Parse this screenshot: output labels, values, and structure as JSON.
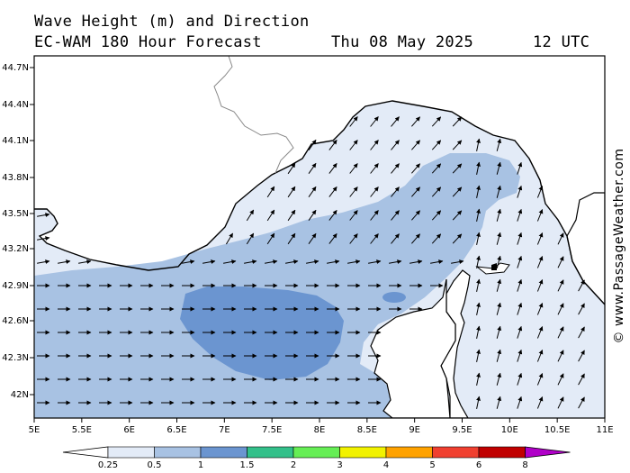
{
  "header": {
    "line1": "Wave Height (m) and Direction",
    "line2": "EC-WAM 180 Hour Forecast",
    "date": "Thu 08 May 2025",
    "time": "12 UTC"
  },
  "axes": {
    "lat_labels": [
      "44.7N",
      "44.4N",
      "44.1N",
      "43.8N",
      "43.5N",
      "43.2N",
      "42.9N",
      "42.6N",
      "42.3N",
      "42N"
    ],
    "lon_labels": [
      "5E",
      "5.5E",
      "6E",
      "6.5E",
      "7E",
      "7.5E",
      "8E",
      "8.5E",
      "9E",
      "9.5E",
      "10E",
      "10.5E",
      "11E"
    ]
  },
  "legend": {
    "labels": [
      "0.25",
      "0.5",
      "1",
      "1.5",
      "2",
      "3",
      "4",
      "5",
      "6",
      "8"
    ],
    "colors": [
      "#e3ebf7",
      "#a8c2e3",
      "#6b95d0",
      "#33c08a",
      "#66ee55",
      "#f2f200",
      "#ffa200",
      "#f04030",
      "#c00000",
      "#b000c8"
    ],
    "unit": "m"
  },
  "watermark": "© www.PassageWeather.com",
  "map_colors": {
    "land": "#ffffff",
    "sea_light": "#e3ebf7",
    "sea_mid": "#a8c2e3",
    "sea_high": "#6b95d0",
    "coast": "#000000",
    "border": "#888888"
  },
  "wave_direction": {
    "west_sector": "east",
    "east_sector": "north-northeast"
  }
}
